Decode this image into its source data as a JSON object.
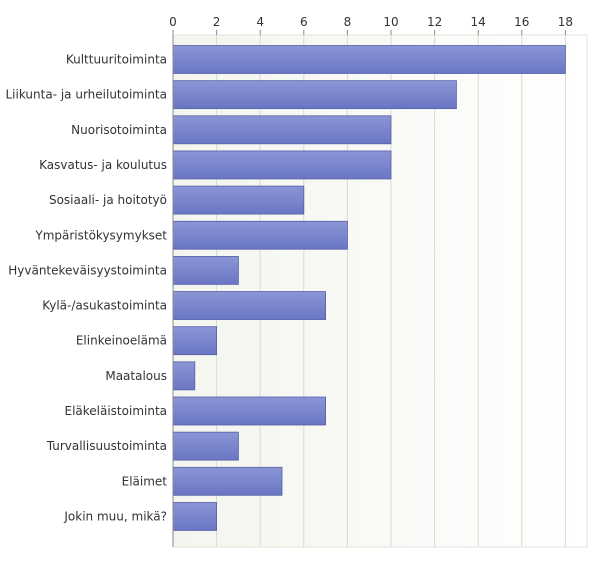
{
  "chart_data": {
    "type": "bar",
    "orientation": "horizontal",
    "categories": [
      "Kulttuuritoiminta",
      "Liikunta- ja urheilutoiminta",
      "Nuorisotoiminta",
      "Kasvatus- ja koulutus",
      "Sosiaali- ja hoitotyö",
      "Ympäristökysymykset",
      "Hyväntekeväisyystoiminta",
      "Kylä-/asukastoiminta",
      "Elinkeinoelämä",
      "Maatalous",
      "Eläkeläistoiminta",
      "Turvallisuustoiminta",
      "Eläimet",
      "Jokin muu, mikä?"
    ],
    "values": [
      18,
      13,
      10,
      10,
      6,
      8,
      3,
      7,
      2,
      1,
      7,
      3,
      5,
      2
    ],
    "xlim": [
      0,
      18
    ],
    "xticks": [
      0,
      2,
      4,
      6,
      8,
      10,
      12,
      14,
      16,
      18
    ],
    "xtick_labels": [
      "0",
      "2",
      "4",
      "6",
      "8",
      "10",
      "12",
      "14",
      "16",
      "18"
    ],
    "x_axis_position": "top",
    "grid": true,
    "title": "",
    "xlabel": "",
    "ylabel": "",
    "colors": {
      "bar_fill_top": "#8b95d6",
      "bar_fill_bottom": "#6a76c4",
      "bar_stroke": "#5560a8",
      "plot_bg_left": "#f3f5ee",
      "plot_bg_right": "#ffffff",
      "grid": "#d8dbd2",
      "axis": "#8a8a8a",
      "text": "#333333"
    }
  }
}
